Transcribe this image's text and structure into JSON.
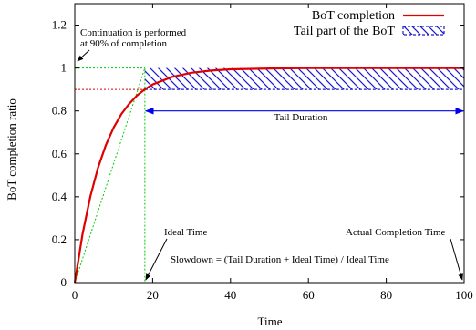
{
  "chart_data": {
    "type": "line",
    "xlabel": "Time",
    "ylabel": "BoT completion ratio",
    "xlim": [
      0,
      100
    ],
    "ylim": [
      0,
      1.3
    ],
    "x_ticks": [
      0,
      20,
      40,
      60,
      80,
      100
    ],
    "y_ticks": [
      0,
      0.2,
      0.4,
      0.6,
      0.8,
      1,
      1.2
    ],
    "x_tick_labels": [
      "0",
      "20",
      "40",
      "60",
      "80",
      "100"
    ],
    "y_tick_labels": [
      "0",
      "0.2",
      "0.4",
      "0.6",
      "0.8",
      "1",
      "1.2"
    ],
    "legend_position": "top-right",
    "series": [
      {
        "name": "BoT completion",
        "color": "#e00000",
        "x": [
          0,
          2,
          4,
          6,
          8,
          10,
          12,
          14,
          16,
          18,
          20,
          25,
          30,
          35,
          40,
          50,
          60,
          70,
          80,
          90,
          100
        ],
        "y": [
          0,
          0.226,
          0.402,
          0.537,
          0.642,
          0.723,
          0.786,
          0.834,
          0.872,
          0.901,
          0.923,
          0.959,
          0.978,
          0.988,
          0.994,
          0.998,
          1.0,
          1.0,
          1.0,
          1.0,
          1.0
        ]
      }
    ],
    "tail_region": {
      "name": "Tail part of the BoT",
      "x_start": 18,
      "x_end": 100,
      "y_low": 0.9,
      "y_high": 1.0,
      "color": "#1a1acc"
    },
    "guides": {
      "color": "#00cc00",
      "threshold_color": "#e00000",
      "threshold_y": 0.9,
      "continuation_x": 18,
      "box_top_y": 1.0
    },
    "tail_arrow": {
      "x_start": 18,
      "x_end": 100,
      "y": 0.8,
      "color": "#0000ee"
    },
    "annotations": {
      "continuation_line1": "Continuation is performed",
      "continuation_line2": "at 90% of completion",
      "tail_duration": "Tail Duration",
      "ideal_time": "Ideal Time",
      "actual_completion_time": "Actual Completion Time",
      "slowdown": "Slowdown = (Tail Duration + Ideal Time) / Ideal Time"
    }
  }
}
